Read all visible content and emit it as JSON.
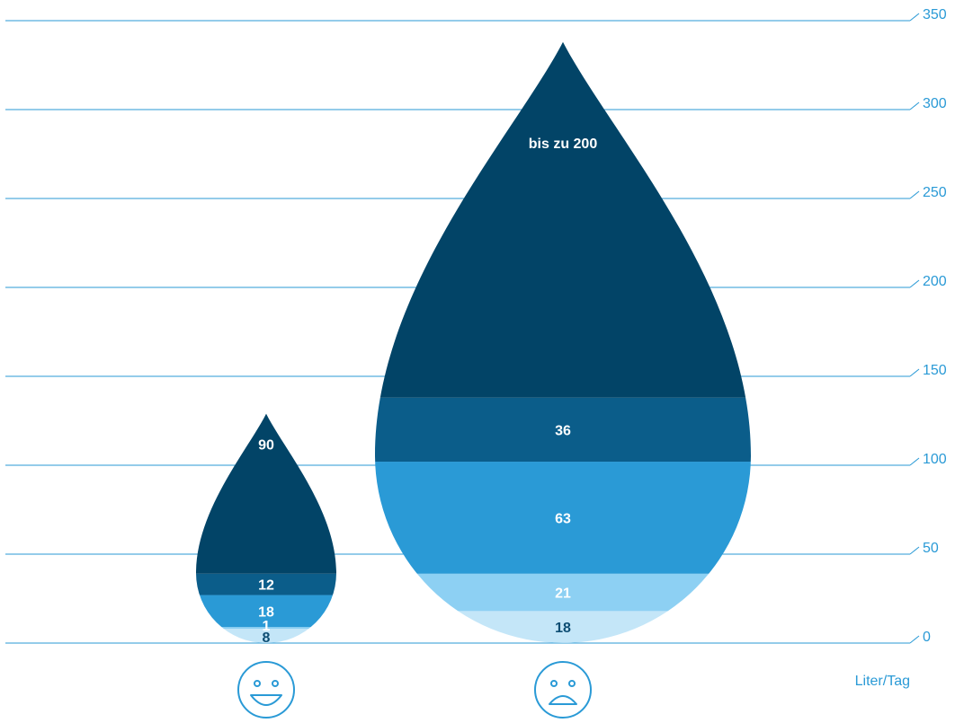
{
  "chart_data": {
    "type": "bar",
    "unit_label": "Liter/Tag",
    "ylim": [
      0,
      350
    ],
    "yticks": [
      0,
      50,
      100,
      150,
      200,
      250,
      300,
      350
    ],
    "grid": true,
    "axis_side": "right",
    "categories": [
      "smiley-happy-icon",
      "smiley-sad-icon"
    ],
    "bars": [
      {
        "icon": "smiley-happy-icon",
        "total": 129,
        "segments": [
          {
            "value": 8,
            "label": "8",
            "color": "#c4e6f8",
            "text_color": "#0d4d73"
          },
          {
            "value": 1,
            "label": "1",
            "color": "#8dd0f3",
            "text_color": "#ffffff"
          },
          {
            "value": 18,
            "label": "18",
            "color": "#2a9ad6",
            "text_color": "#ffffff"
          },
          {
            "value": 12,
            "label": "12",
            "color": "#0b5d8a",
            "text_color": "#ffffff"
          },
          {
            "value": 90,
            "label": "90",
            "color": "#024467",
            "text_color": "#ffffff"
          }
        ]
      },
      {
        "icon": "smiley-sad-icon",
        "total": 338,
        "segments": [
          {
            "value": 18,
            "label": "18",
            "color": "#c4e6f8",
            "text_color": "#0d4d73"
          },
          {
            "value": 21,
            "label": "21",
            "color": "#8dd0f3",
            "text_color": "#ffffff"
          },
          {
            "value": 63,
            "label": "63",
            "color": "#2a9ad6",
            "text_color": "#ffffff"
          },
          {
            "value": 36,
            "label": "36",
            "color": "#0b5d8a",
            "text_color": "#ffffff"
          },
          {
            "value": 200,
            "label": "bis zu 200",
            "color": "#024467",
            "text_color": "#ffffff"
          }
        ]
      }
    ],
    "colors": {
      "grid": "#2a9ad6",
      "axis_text": "#2a9ad6",
      "icon": "#2a9ad6"
    }
  }
}
